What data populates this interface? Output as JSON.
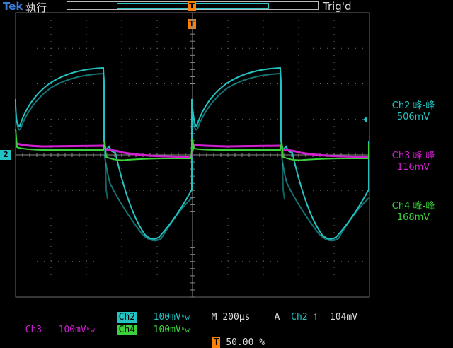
{
  "header": {
    "brand": "Tek",
    "run_state": "執行",
    "trigger_status": "Trig'd"
  },
  "markers": {
    "trigger_label": "T",
    "channel_ref": "2"
  },
  "measurements": [
    {
      "label": "Ch2 峰-峰",
      "value": "506mV",
      "color": "#23c3c3"
    },
    {
      "label": "Ch3 峰-峰",
      "value": "116mV",
      "color": "#d020d0"
    },
    {
      "label": "Ch4 峰-峰",
      "value": "168mV",
      "color": "#3bd33b"
    }
  ],
  "bottom": {
    "ch2_label": "Ch2",
    "ch2_scale": "100mV",
    "ch3_label": "Ch3",
    "ch3_scale": "100mV",
    "ch4_label": "Ch4",
    "ch4_scale": "100mV",
    "bw_symbol": "ᵇw",
    "timebase_label": "M",
    "timebase": "200µs",
    "trig_source_label": "A",
    "trig_source": "Ch2",
    "trig_edge": "ſ",
    "trig_level": "104mV",
    "trig_pos_label": "T",
    "trig_pos": "50.00 %"
  },
  "colors": {
    "ch2": "#23c3c3",
    "ch3": "#d020d0",
    "ch4": "#3bd33b",
    "trigger": "#ff7f00",
    "grid": "#6a6a6a"
  }
}
